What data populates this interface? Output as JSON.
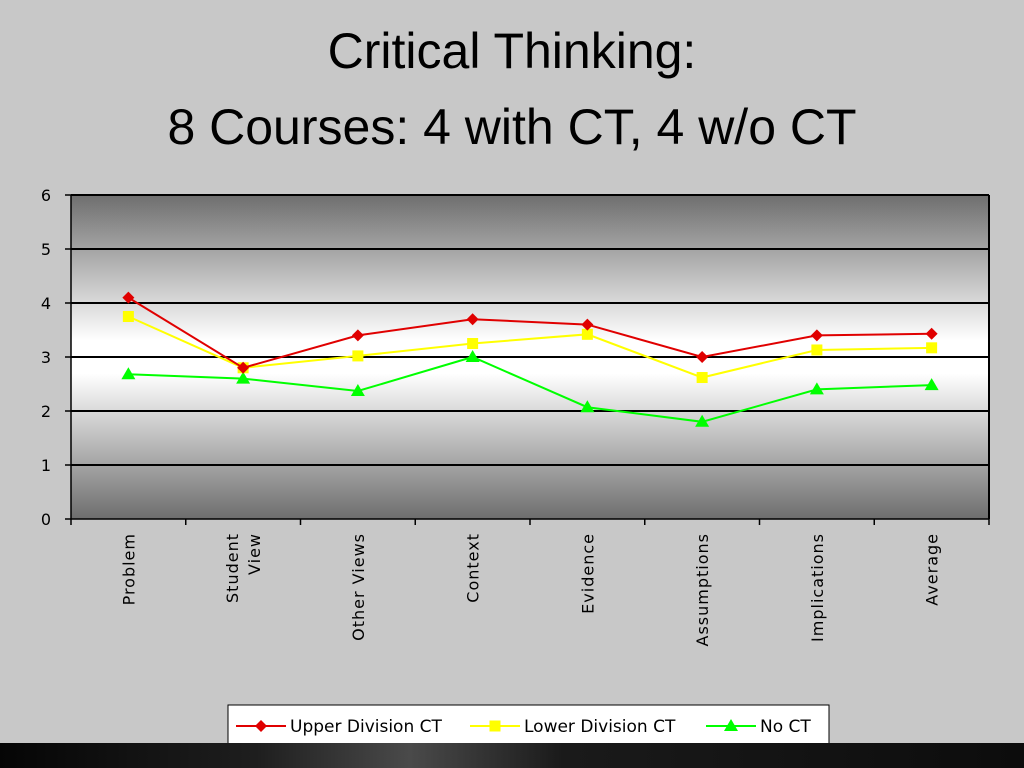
{
  "slide": {
    "title_line1": "Critical Thinking:",
    "title_line2": "8 Courses:  4 with CT, 4 w/o CT"
  },
  "chart_data": {
    "type": "line",
    "title": "",
    "xlabel": "",
    "ylabel": "",
    "ylim": [
      0,
      6
    ],
    "yticks": [
      0,
      1,
      2,
      3,
      4,
      5,
      6
    ],
    "grid": true,
    "legend_position": "bottom",
    "categories": [
      [
        "Problem"
      ],
      [
        "Student",
        "View"
      ],
      [
        "Other Views"
      ],
      [
        "Context"
      ],
      [
        "Evidence"
      ],
      [
        "Assumptions"
      ],
      [
        "Implications"
      ],
      [
        "Average"
      ]
    ],
    "series": [
      {
        "name": "Upper Division CT",
        "color": "#e00000",
        "marker": "diamond",
        "values": [
          4.1,
          2.8,
          3.4,
          3.7,
          3.6,
          3.0,
          3.4,
          3.43
        ]
      },
      {
        "name": "Lower Division CT",
        "color": "#ffff00",
        "marker": "square",
        "values": [
          3.75,
          2.8,
          3.02,
          3.25,
          3.42,
          2.62,
          3.13,
          3.17
        ]
      },
      {
        "name": "No CT",
        "color": "#00ff00",
        "marker": "triangle",
        "values": [
          2.68,
          2.6,
          2.37,
          3.0,
          2.07,
          1.8,
          2.4,
          2.48
        ]
      }
    ]
  }
}
